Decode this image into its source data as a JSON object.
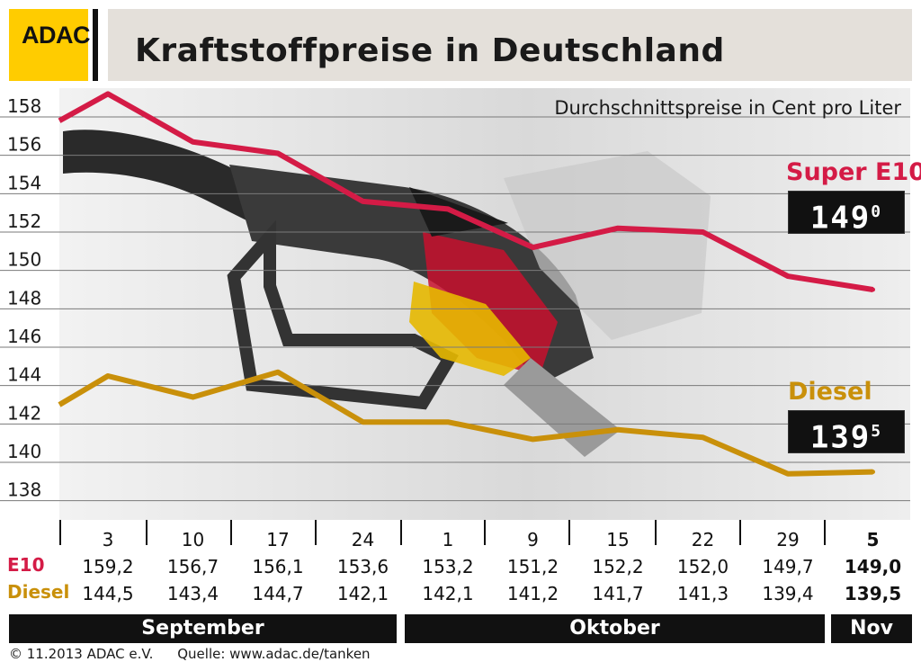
{
  "logo": {
    "text": "ADAC"
  },
  "title": "Kraftstoffpreise in Deutschland",
  "subtitle": "Durchschnittspreise in Cent pro Liter",
  "labels": {
    "super": "Super E10",
    "diesel": "Diesel",
    "row_e10": "E10",
    "row_diesel": "Diesel"
  },
  "displays": {
    "super_main": "149",
    "super_sup": "0",
    "diesel_main": "139",
    "diesel_sup": "5"
  },
  "months": [
    {
      "label": "September"
    },
    {
      "label": "Oktober"
    },
    {
      "label": "Nov"
    }
  ],
  "footer": {
    "copyright": "© 11.2013  ADAC e.V.",
    "source": "Quelle: www.adac.de/tanken"
  },
  "colors": {
    "super": "#d41b46",
    "diesel": "#c9900a",
    "logo": "#ffcc00"
  },
  "chart_data": {
    "type": "line",
    "title": "Kraftstoffpreise in Deutschland",
    "subtitle": "Durchschnittspreise in Cent pro Liter",
    "ylim": [
      137,
      159.5
    ],
    "yticks": [
      138,
      140,
      142,
      144,
      146,
      148,
      150,
      152,
      154,
      156,
      158
    ],
    "categories": [
      "3",
      "10",
      "17",
      "24",
      "1",
      "9",
      "15",
      "22",
      "29",
      "5"
    ],
    "category_values_e10": [
      "159,2",
      "156,7",
      "156,1",
      "153,6",
      "153,2",
      "151,2",
      "152,2",
      "152,0",
      "149,7",
      "149,0"
    ],
    "category_values_diesel": [
      "144,5",
      "143,4",
      "144,7",
      "142,1",
      "142,1",
      "141,2",
      "141,7",
      "141,3",
      "139,4",
      "139,5"
    ],
    "series": [
      {
        "name": "Super E10",
        "color": "#d41b46",
        "start": 157.8,
        "values": [
          159.2,
          156.7,
          156.1,
          153.6,
          153.2,
          151.2,
          152.2,
          152.0,
          149.7,
          149.0
        ]
      },
      {
        "name": "Diesel",
        "color": "#c9900a",
        "start": 143.0,
        "values": [
          144.5,
          143.4,
          144.7,
          142.1,
          142.1,
          141.2,
          141.7,
          141.3,
          139.4,
          139.5
        ]
      }
    ],
    "grid": true,
    "legend": "right"
  }
}
